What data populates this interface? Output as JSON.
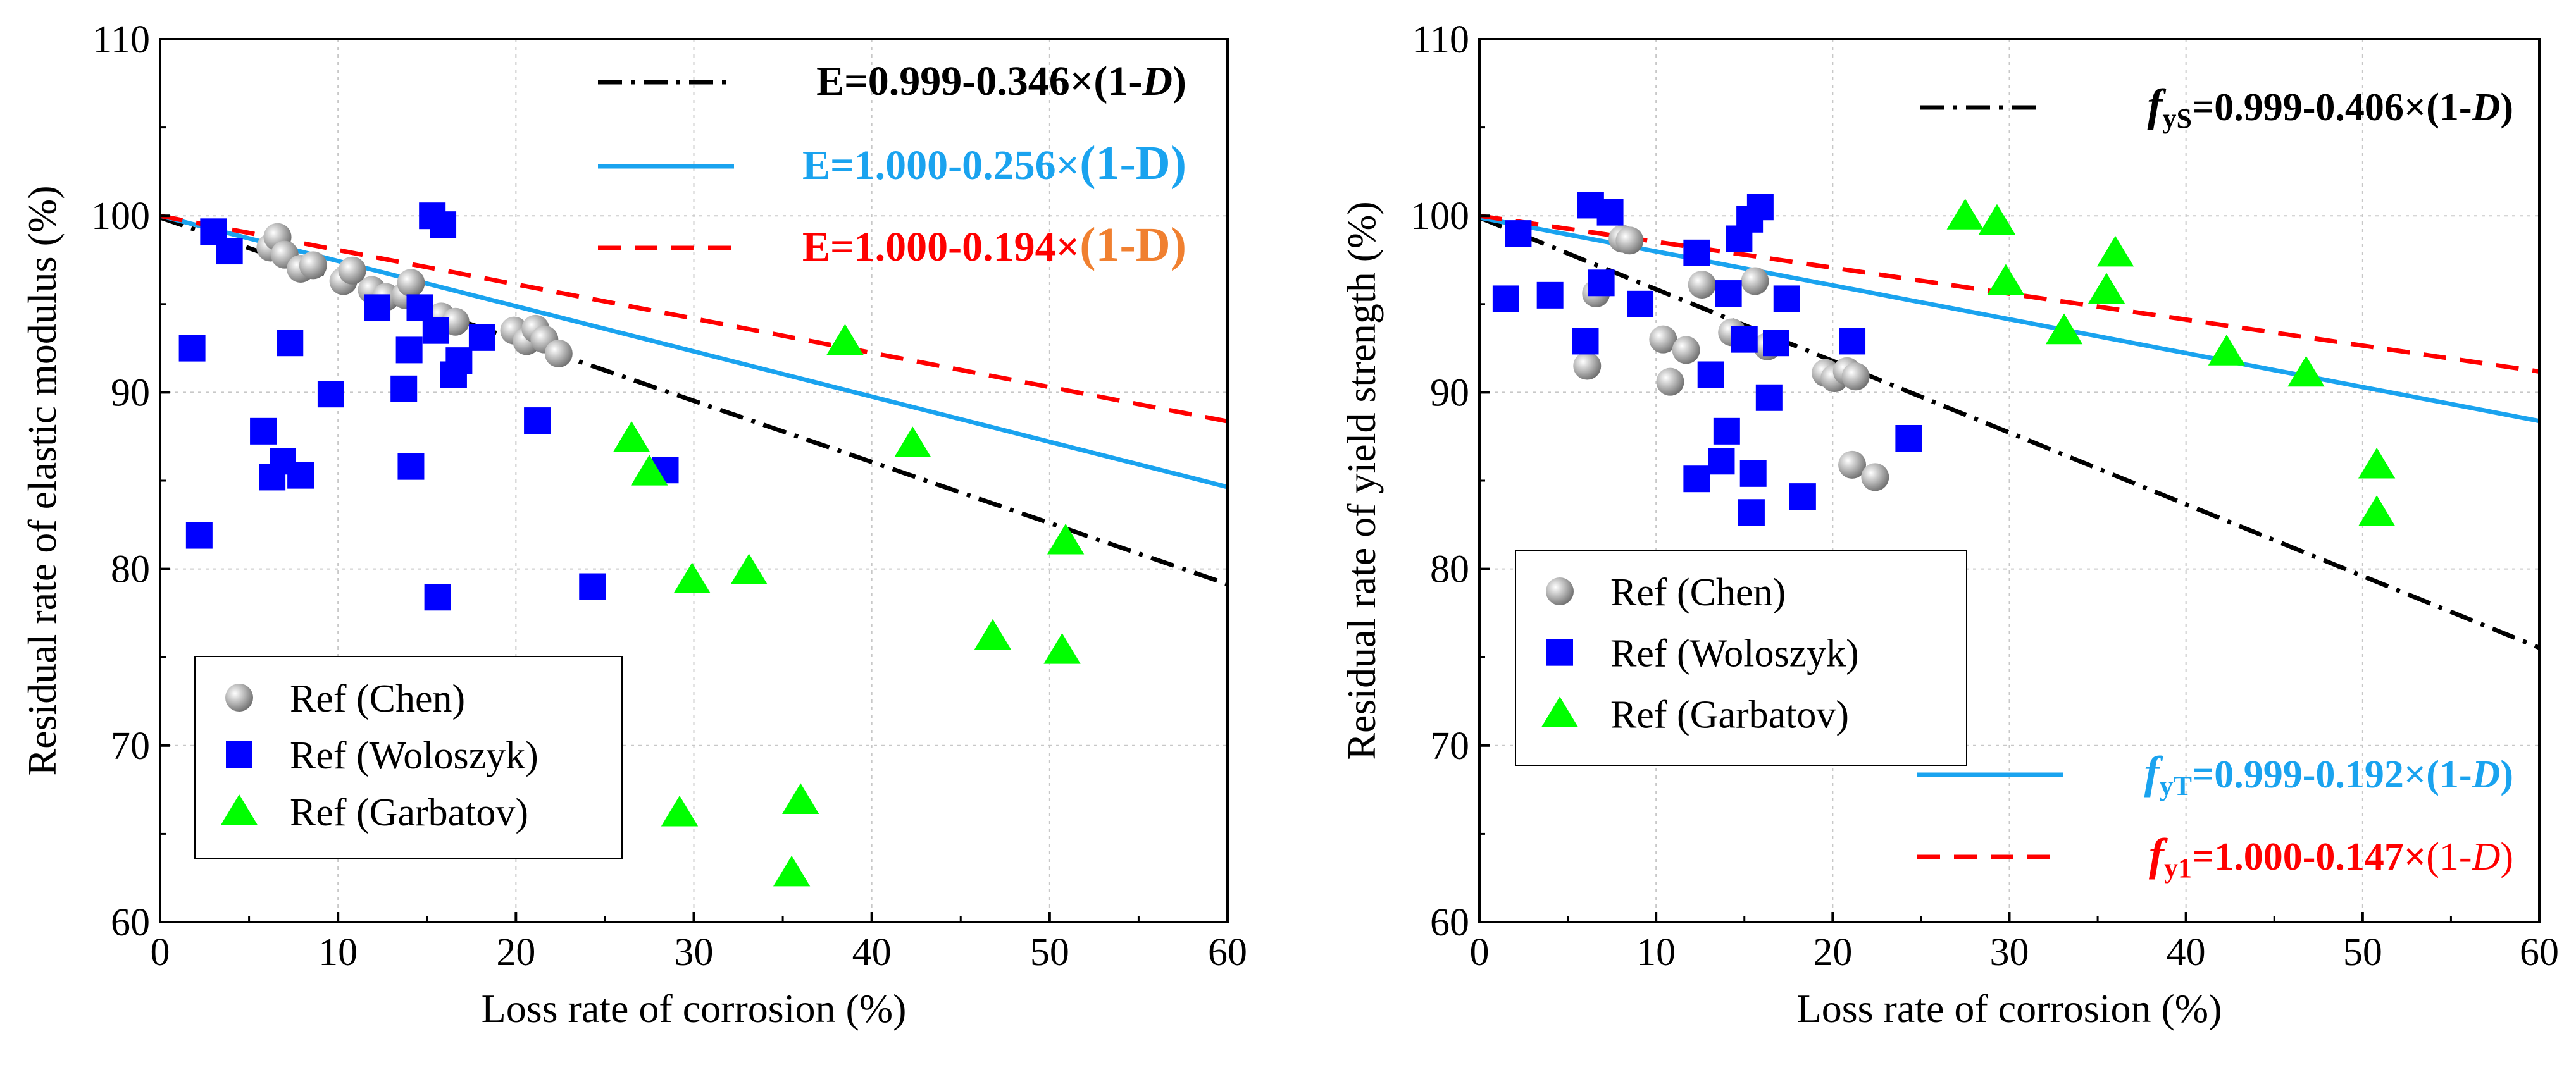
{
  "chart_data": [
    {
      "type": "scatter",
      "title": "",
      "xlabel": "Loss rate of corrosion (%)",
      "ylabel": "Residual rate of elastic modulus (%)",
      "xlim": [
        0,
        60
      ],
      "ylim": [
        60,
        110
      ],
      "xticks": [
        0,
        10,
        20,
        30,
        40,
        50,
        60
      ],
      "yticks": [
        60,
        70,
        80,
        90,
        100,
        110
      ],
      "grid": true,
      "legend_position": "bottom-left",
      "series": [
        {
          "name": "Ref (Chen)",
          "marker": "circle",
          "color": "#a6a6a6",
          "points": [
            [
              6.2,
              98.2
            ],
            [
              6.6,
              98.8
            ],
            [
              7.0,
              97.8
            ],
            [
              7.9,
              97.0
            ],
            [
              8.6,
              97.2
            ],
            [
              10.3,
              96.3
            ],
            [
              10.8,
              96.9
            ],
            [
              11.9,
              95.8
            ],
            [
              12.7,
              95.4
            ],
            [
              13.8,
              95.5
            ],
            [
              14.1,
              96.2
            ],
            [
              15.8,
              94.3
            ],
            [
              16.6,
              94.0
            ],
            [
              19.9,
              93.5
            ],
            [
              20.6,
              92.9
            ],
            [
              21.1,
              93.6
            ],
            [
              21.6,
              93.0
            ],
            [
              22.4,
              92.2
            ]
          ]
        },
        {
          "name": "Ref (Woloszyk)",
          "marker": "square",
          "color": "#0000ff",
          "points": [
            [
              1.8,
              92.5
            ],
            [
              2.2,
              81.9
            ],
            [
              3.0,
              99.1
            ],
            [
              3.9,
              98.0
            ],
            [
              5.8,
              87.8
            ],
            [
              6.3,
              85.2
            ],
            [
              6.9,
              86.1
            ],
            [
              7.3,
              92.8
            ],
            [
              7.9,
              85.3
            ],
            [
              9.6,
              89.9
            ],
            [
              12.2,
              94.8
            ],
            [
              13.7,
              90.2
            ],
            [
              14.0,
              92.4
            ],
            [
              14.1,
              85.8
            ],
            [
              14.6,
              94.8
            ],
            [
              15.3,
              100.0
            ],
            [
              15.5,
              93.5
            ],
            [
              15.6,
              78.4
            ],
            [
              15.9,
              99.5
            ],
            [
              16.5,
              91.0
            ],
            [
              16.8,
              91.8
            ],
            [
              18.1,
              93.1
            ],
            [
              21.2,
              88.4
            ],
            [
              24.3,
              79.0
            ],
            [
              28.4,
              85.6
            ]
          ]
        },
        {
          "name": "Ref (Garbatov)",
          "marker": "triangle",
          "color": "#00ff00",
          "points": [
            [
              26.5,
              87.4
            ],
            [
              27.5,
              85.5
            ],
            [
              29.2,
              66.2
            ],
            [
              29.9,
              79.4
            ],
            [
              33.1,
              79.9
            ],
            [
              35.5,
              62.8
            ],
            [
              36.0,
              66.9
            ],
            [
              38.5,
              92.9
            ],
            [
              42.3,
              87.1
            ],
            [
              46.8,
              76.2
            ],
            [
              50.7,
              75.4
            ],
            [
              50.9,
              81.6
            ]
          ]
        }
      ],
      "fit_lines": [
        {
          "name": "E=0.999-0.346×(1-D)",
          "style": "dash-dot",
          "color": "#000000",
          "intercept": 99.9,
          "slope": -0.346
        },
        {
          "name": "E=1.000-0.256×(1-D)",
          "style": "solid",
          "color": "#1aa3ef",
          "intercept": 100.0,
          "slope": -0.256
        },
        {
          "name": "E=1.000-0.194×(1-D)",
          "style": "dashed",
          "color": "#ff0000",
          "intercept": 100.0,
          "slope": -0.194
        }
      ],
      "annotations": [
        {
          "prefix": "E=0.999-0.346×",
          "paren": "(1-D)",
          "prefix_color": "#000000",
          "paren_color": "#000000",
          "paren_italic_letter": true
        },
        {
          "prefix": "E=1.000-0.256×",
          "paren": "(1-D)",
          "prefix_color": "#1aa3ef",
          "paren_color": "#1aa3ef",
          "paren_italic_letter": false
        },
        {
          "prefix": "E=1.000-0.194×",
          "paren": "(1-D)",
          "prefix_color": "#ff0000",
          "paren_color": "#f08030",
          "paren_italic_letter": false
        }
      ]
    },
    {
      "type": "scatter",
      "title": "",
      "xlabel": "Loss rate of corrosion (%)",
      "ylabel": "Residual rate of yield strength  (%)",
      "xlim": [
        0,
        60
      ],
      "ylim": [
        60,
        110
      ],
      "xticks": [
        0,
        10,
        20,
        30,
        40,
        50,
        60
      ],
      "yticks": [
        60,
        70,
        80,
        90,
        100,
        110
      ],
      "grid": true,
      "legend_position": "middle-left",
      "series": [
        {
          "name": "Ref (Chen)",
          "marker": "circle",
          "color": "#a6a6a6",
          "points": [
            [
              6.1,
              91.5
            ],
            [
              6.6,
              95.6
            ],
            [
              8.1,
              98.7
            ],
            [
              8.5,
              98.6
            ],
            [
              10.4,
              93.0
            ],
            [
              10.8,
              90.6
            ],
            [
              11.7,
              92.4
            ],
            [
              12.6,
              96.1
            ],
            [
              14.3,
              93.4
            ],
            [
              15.6,
              96.3
            ],
            [
              16.3,
              92.6
            ],
            [
              19.6,
              91.1
            ],
            [
              20.1,
              90.8
            ],
            [
              20.8,
              91.2
            ],
            [
              21.1,
              85.9
            ],
            [
              21.3,
              90.9
            ],
            [
              22.4,
              85.2
            ]
          ]
        },
        {
          "name": "Ref (Woloszyk)",
          "marker": "square",
          "color": "#0000ff",
          "points": [
            [
              1.5,
              95.3
            ],
            [
              2.2,
              99.0
            ],
            [
              4.0,
              95.5
            ],
            [
              6.0,
              92.9
            ],
            [
              6.3,
              100.6
            ],
            [
              6.9,
              96.2
            ],
            [
              7.4,
              100.2
            ],
            [
              9.1,
              95.0
            ],
            [
              12.3,
              97.9
            ],
            [
              12.3,
              85.1
            ],
            [
              13.1,
              91.0
            ],
            [
              13.7,
              86.1
            ],
            [
              14.0,
              87.8
            ],
            [
              14.1,
              95.6
            ],
            [
              14.7,
              98.7
            ],
            [
              15.0,
              93.0
            ],
            [
              15.3,
              99.8
            ],
            [
              15.4,
              83.2
            ],
            [
              15.5,
              85.4
            ],
            [
              15.9,
              100.5
            ],
            [
              16.4,
              89.7
            ],
            [
              16.8,
              92.8
            ],
            [
              17.4,
              95.3
            ],
            [
              18.3,
              84.1
            ],
            [
              21.1,
              92.9
            ],
            [
              24.3,
              87.4
            ]
          ]
        },
        {
          "name": "Ref (Garbatov)",
          "marker": "triangle",
          "color": "#00ff00",
          "points": [
            [
              27.5,
              100.0
            ],
            [
              29.3,
              99.7
            ],
            [
              29.8,
              96.3
            ],
            [
              33.1,
              93.5
            ],
            [
              35.5,
              95.8
            ],
            [
              36.0,
              97.9
            ],
            [
              42.3,
              92.3
            ],
            [
              46.8,
              91.1
            ],
            [
              50.8,
              85.9
            ],
            [
              50.8,
              83.2
            ]
          ]
        }
      ],
      "fit_lines": [
        {
          "name": "fyS=0.999-0.406×(1-D)",
          "style": "dash-dot",
          "color": "#000000",
          "intercept": 99.9,
          "slope": -0.406
        },
        {
          "name": "fyT=0.999-0.192×(1-D)",
          "style": "solid",
          "color": "#1aa3ef",
          "intercept": 99.9,
          "slope": -0.192
        },
        {
          "name": "fy1=1.000-0.147×(1-D)",
          "style": "dashed",
          "color": "#ff0000",
          "intercept": 100.0,
          "slope": -0.147
        }
      ],
      "annotations": [
        {
          "sym": "f",
          "sub": "yS",
          "rest": "=0.999-0.406×(1-",
          "italic": "D",
          "tail": ")",
          "color": "#000000",
          "tail_bold": true
        },
        {
          "sym": "f",
          "sub": "yT",
          "rest": "=0.999-0.192×(1-",
          "italic": "D",
          "tail": ")",
          "color": "#1aa3ef",
          "tail_bold": true
        },
        {
          "sym": "f",
          "sub": "y1",
          "rest": "=1.000-0.147×",
          "italic": "D",
          "tail": "(1-",
          "close": ")",
          "color": "#ff0000",
          "tail_bold": false
        }
      ]
    }
  ]
}
